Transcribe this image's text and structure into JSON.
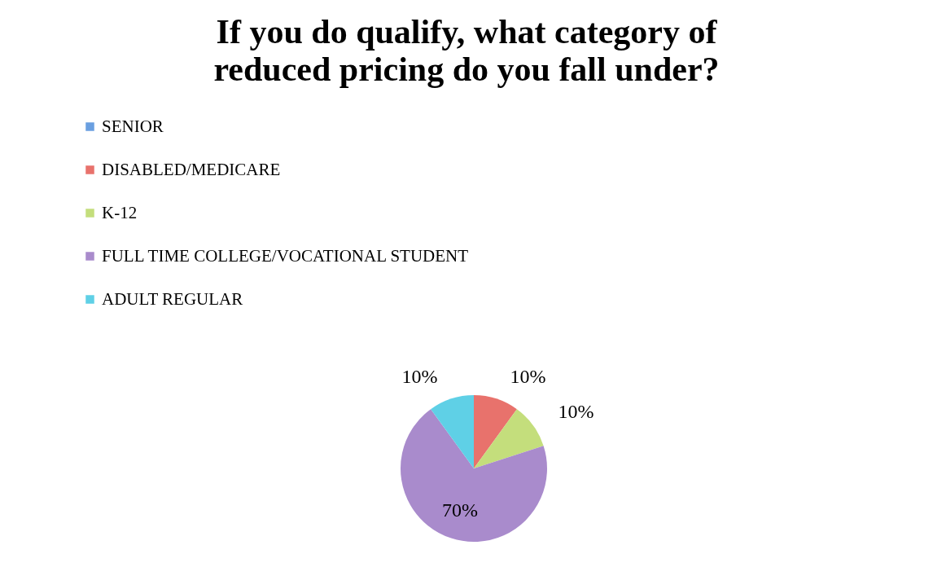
{
  "chart_data": {
    "type": "pie",
    "title": "If you do qualify, what category of reduced pricing do you fall under?",
    "categories": [
      "SENIOR",
      "DISABLED/MEDICARE",
      "K-12",
      "FULL TIME COLLEGE/VOCATIONAL STUDENT",
      "ADULT REGULAR"
    ],
    "values": [
      0,
      10,
      10,
      70,
      10
    ],
    "colors": [
      "#6a9fe0",
      "#e8726c",
      "#c4de7c",
      "#a98bcc",
      "#5fd0e6"
    ],
    "value_labels": [
      null,
      "10%",
      "10%",
      "70%",
      "10%"
    ],
    "legend": "top left"
  }
}
